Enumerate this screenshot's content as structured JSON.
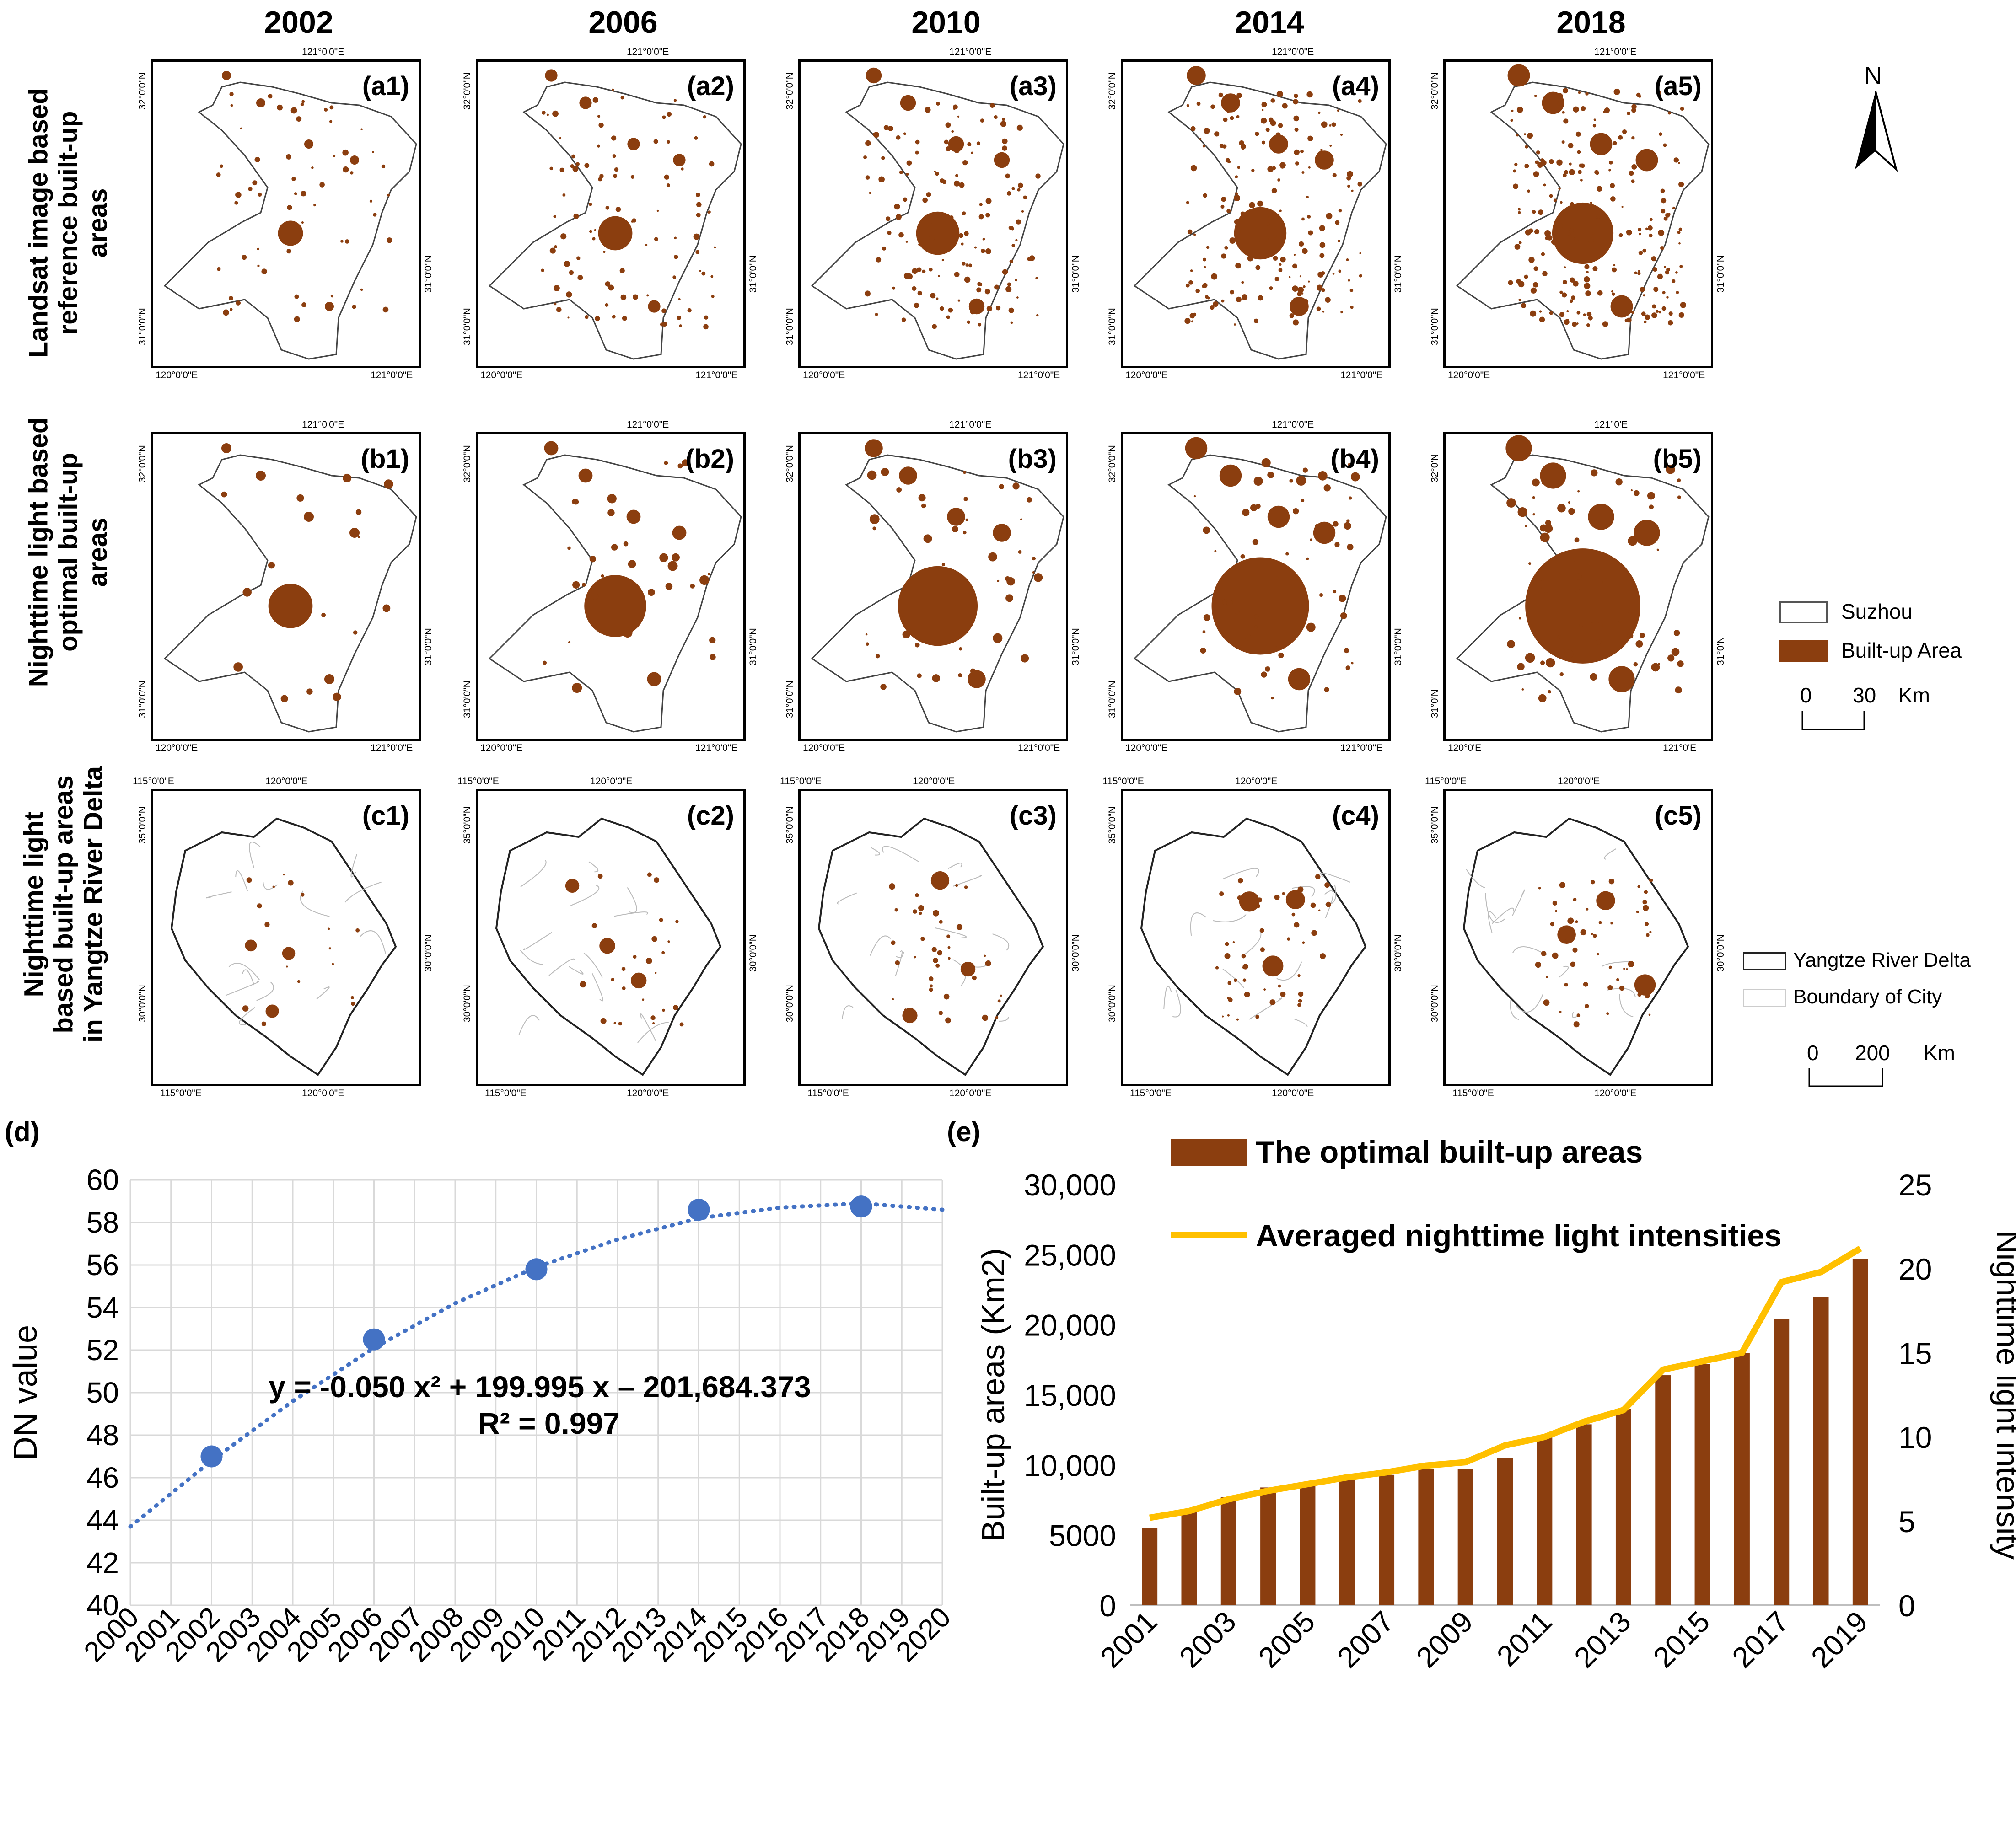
{
  "years": [
    "2002",
    "2006",
    "2010",
    "2014",
    "2018"
  ],
  "row_labels": {
    "a": [
      "Landsat image based",
      "reference built-up areas"
    ],
    "b": [
      "Nighttime light based",
      "optimal built-up areas"
    ],
    "c": [
      "Nighttime light",
      "based built-up areas",
      "in Yangtze River Delta"
    ]
  },
  "panels": {
    "a": [
      "(a1)",
      "(a2)",
      "(a3)",
      "(a4)",
      "(a5)"
    ],
    "b": [
      "(b1)",
      "(b2)",
      "(b3)",
      "(b4)",
      "(b5)"
    ],
    "c": [
      "(c1)",
      "(c2)",
      "(c3)",
      "(c4)",
      "(c5)"
    ]
  },
  "map_ticks": {
    "suzhou_top": "121°0'0\"E",
    "suzhou_top_b5": "121°0'E",
    "suzhou_left_top": "32°0'0\"N",
    "suzhou_left_bottom": "31°0'0\"N",
    "suzhou_right": "31°0'0\"N",
    "suzhou_bottom_left": "120°0'0\"E",
    "suzhou_bottom_right": "121°0'0\"E",
    "suzhou_bottom_left_b5": "120°0'E",
    "suzhou_bottom_right_b5": "121°0'E",
    "suzhou_left_top_b5": "32°0'N",
    "suzhou_left_bottom_b5": "31°0'N",
    "suzhou_right_b5": "31°0'N",
    "yrd_top_left": "115°0'0\"E",
    "yrd_top_right": "120°0'0\"E",
    "yrd_left_top": "35°0'0\"N",
    "yrd_left_bottom": "30°0'0\"N",
    "yrd_right": "30°0'0\"N",
    "yrd_bottom_left": "115°0'0\"E",
    "yrd_bottom_right": "120°0'0\"E"
  },
  "north_arrow": "N",
  "legend_suzhou": {
    "boundary": "Suzhou",
    "builtup": "Built-up Area",
    "scale": "0",
    "scale_max": "30",
    "unit": "Km"
  },
  "legend_yrd": {
    "boundary": "Yangtze River Delta",
    "city": "Boundary of City",
    "scale": "0",
    "scale_max": "200",
    "unit": "Km"
  },
  "colors": {
    "builtup": "#8B3E0F",
    "scatter": "#4472C4",
    "line": "#FFC000",
    "grid": "#D9D9D9"
  },
  "chart_data": [
    {
      "id": "d",
      "panel_label": "(d)",
      "type": "scatter",
      "ylabel": "DN value",
      "xlabel": "",
      "x_categories": [
        "2000",
        "2001",
        "2002",
        "2003",
        "2004",
        "2005",
        "2006",
        "2007",
        "2008",
        "2009",
        "2010",
        "2011",
        "2012",
        "2013",
        "2014",
        "2015",
        "2016",
        "2017",
        "2018",
        "2019",
        "2020"
      ],
      "ylim": [
        40,
        60
      ],
      "yticks": [
        "40",
        "42",
        "44",
        "46",
        "48",
        "50",
        "52",
        "54",
        "56",
        "58",
        "60"
      ],
      "points": [
        {
          "x": 2002,
          "y": 47.0
        },
        {
          "x": 2006,
          "y": 52.5
        },
        {
          "x": 2010,
          "y": 55.8
        },
        {
          "x": 2014,
          "y": 58.6
        },
        {
          "x": 2018,
          "y": 58.75
        }
      ],
      "trendline": {
        "type": "polynomial-2",
        "style": "dotted",
        "fit_points": [
          {
            "x": 2000,
            "y": 43.7
          },
          {
            "x": 2002,
            "y": 46.8
          },
          {
            "x": 2004,
            "y": 49.6
          },
          {
            "x": 2006,
            "y": 52.1
          },
          {
            "x": 2008,
            "y": 54.2
          },
          {
            "x": 2010,
            "y": 55.9
          },
          {
            "x": 2012,
            "y": 57.2
          },
          {
            "x": 2014,
            "y": 58.2
          },
          {
            "x": 2016,
            "y": 58.7
          },
          {
            "x": 2018,
            "y": 58.9
          },
          {
            "x": 2020,
            "y": 58.6
          }
        ]
      },
      "equation": "y = -0.050 x² + 199.995 x – 201,684.373",
      "r2": "R² = 0.997"
    },
    {
      "id": "e",
      "panel_label": "(e)",
      "type": "bar",
      "ylabel": "Built-up areas (Km2)",
      "y2label": "Nighttime light intensity",
      "categories": [
        "2001",
        "2002",
        "2003",
        "2004",
        "2005",
        "2006",
        "2007",
        "2008",
        "2009",
        "2010",
        "2011",
        "2012",
        "2013",
        "2014",
        "2015",
        "2016",
        "2017",
        "2018",
        "2019"
      ],
      "x_tick_labels": [
        "2001",
        "2003",
        "2005",
        "2007",
        "2009",
        "2011",
        "2013",
        "2015",
        "2017",
        "2019"
      ],
      "ylim": [
        0,
        30000
      ],
      "yticks": [
        "0",
        "5000",
        "10,000",
        "15,000",
        "20,000",
        "25,000",
        "30,000"
      ],
      "y2lim": [
        0,
        25
      ],
      "y2ticks": [
        "0",
        "5",
        "10",
        "15",
        "20",
        "25"
      ],
      "series": [
        {
          "name": "The optimal built-up areas",
          "type": "bar",
          "values": [
            5500,
            6700,
            7700,
            8400,
            8600,
            9000,
            9300,
            9700,
            9700,
            10500,
            12000,
            12900,
            14000,
            16400,
            17200,
            18000,
            20400,
            22000,
            24700
          ]
        },
        {
          "name": "Averaged nighttime light intensities",
          "type": "line",
          "axis": "secondary",
          "values": [
            5.2,
            5.6,
            6.3,
            6.8,
            7.2,
            7.6,
            7.9,
            8.3,
            8.5,
            9.5,
            10.0,
            10.9,
            11.6,
            14.0,
            14.5,
            15.0,
            19.2,
            19.8,
            21.2
          ]
        }
      ]
    }
  ]
}
